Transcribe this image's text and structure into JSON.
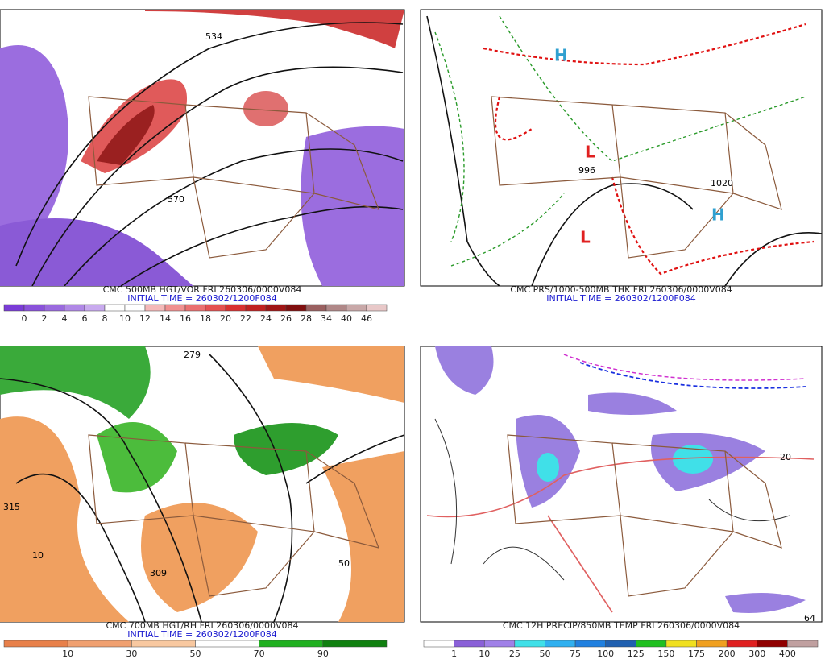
{
  "panels": [
    {
      "caption": "CMC 500MB HGT/VOR FRI 260306/0000V084",
      "initial_time": "INITIAL TIME = 260302/1200F084",
      "colorbar_labels": [
        "0",
        "2",
        "4",
        "6",
        "8",
        "10",
        "12",
        "14",
        "16",
        "18",
        "20",
        "22",
        "24",
        "26",
        "28",
        "34",
        "40",
        "46"
      ],
      "map_labels": [
        "534",
        "570"
      ]
    },
    {
      "caption": "CMC PRS/1000-500MB THK FRI 260306/0000V084",
      "initial_time": "INITIAL TIME = 260302/1200F084",
      "map_labels": [
        "L",
        "H",
        "996",
        "1020",
        "L",
        "H"
      ]
    },
    {
      "caption": "CMC 700MB HGT/RH FRI 260306/0000V084",
      "initial_time": "INITIAL TIME = 260302/1200F084",
      "colorbar_labels": [
        "10",
        "30",
        "50",
        "70",
        "90"
      ],
      "map_labels": [
        "279",
        "315",
        "309",
        "10",
        "50"
      ]
    },
    {
      "caption": "CMC 12H PRECIP/850MB TEMP FRI 260306/0000V084",
      "colorbar_labels": [
        "1",
        "10",
        "25",
        "50",
        "75",
        "100",
        "125",
        "150",
        "175",
        "200",
        "300",
        "400"
      ],
      "map_labels": [
        "20",
        "64"
      ]
    }
  ]
}
